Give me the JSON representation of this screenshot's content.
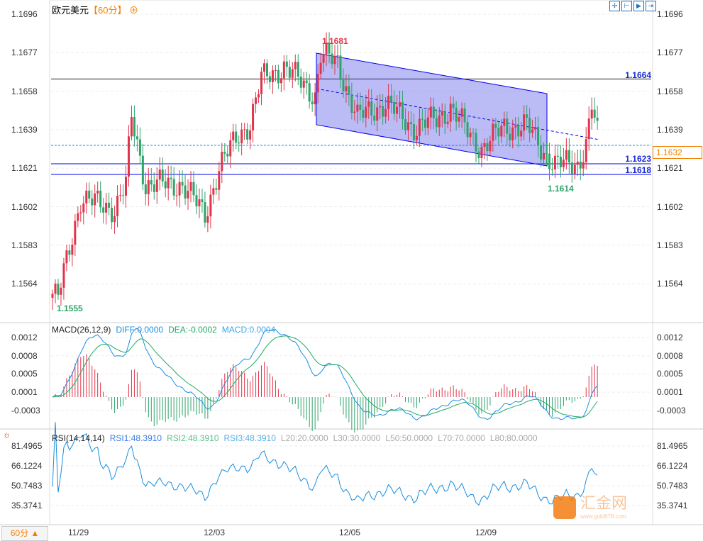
{
  "header": {
    "symbol": "欧元美元",
    "period": "【60分】",
    "toggle_icon": "circle-plus-icon"
  },
  "toolbar": [
    {
      "icon": "crosshair-icon"
    },
    {
      "icon": "zoom-range-icon"
    },
    {
      "icon": "play-icon"
    },
    {
      "icon": "jump-latest-icon"
    }
  ],
  "price_axis": [
    "1.1696",
    "1.1677",
    "1.1658",
    "1.1639",
    "1.1621",
    "1.1602",
    "1.1583",
    "1.1564"
  ],
  "current_price": "1.1632",
  "levels": {
    "resistance": "1.1664",
    "support1": "1.1623",
    "support2": "1.1618"
  },
  "annotations": {
    "high": "1.1681",
    "low_channel": "1.1614",
    "low": "1.1555"
  },
  "macd": {
    "title": "MACD(26,12,9)",
    "diff": "DIFF:0.0000",
    "dea": "DEA:-0.0002",
    "macd": "MACD:0.0004",
    "axis": [
      "0.0012",
      "0.0008",
      "0.0005",
      "0.0001",
      "-0.0003"
    ]
  },
  "rsi": {
    "title": "RSI(14,14,14)",
    "rsi1": "RSI1:48.3910",
    "rsi2": "RSI2:48.3910",
    "rsi3": "RSI3:48.3910",
    "l20": "L20:20.0000",
    "l30": "L30:30.0000",
    "l50": "L50:50.0000",
    "l70": "L70:70.0000",
    "l80": "L80:80.0000",
    "axis": [
      "81.4965",
      "66.1224",
      "50.7483",
      "35.3741"
    ]
  },
  "x_axis": [
    "11/29",
    "12/03",
    "12/05",
    "12/09"
  ],
  "period_button": "60分 ▲",
  "watermark": {
    "name": "汇金网",
    "url": "www.gold678.com"
  },
  "colors": {
    "up": "#e0344a",
    "down": "#2ea36a",
    "channel": "#0000ee",
    "diff": "#1a8ee0",
    "dea": "#22aa66"
  },
  "chart_data": {
    "type": "candlestick",
    "keypoints": [
      [
        0,
        1.1558
      ],
      [
        2,
        1.1556
      ],
      [
        10,
        1.1605
      ],
      [
        22,
        1.16
      ],
      [
        26,
        1.1612
      ],
      [
        28,
        1.1645
      ],
      [
        33,
        1.1612
      ],
      [
        46,
        1.1612
      ],
      [
        54,
        1.1597
      ],
      [
        59,
        1.162
      ],
      [
        66,
        1.1637
      ],
      [
        70,
        1.1642
      ],
      [
        74,
        1.1664
      ],
      [
        82,
        1.167
      ],
      [
        90,
        1.166
      ],
      [
        93,
        1.1656
      ],
      [
        95,
        1.1676
      ],
      [
        101,
        1.1672
      ],
      [
        104,
        1.166
      ],
      [
        108,
        1.1645
      ],
      [
        118,
        1.1652
      ],
      [
        128,
        1.164
      ],
      [
        136,
        1.1644
      ],
      [
        141,
        1.165
      ],
      [
        148,
        1.1636
      ],
      [
        152,
        1.163
      ],
      [
        160,
        1.164
      ],
      [
        168,
        1.1641
      ],
      [
        174,
        1.1628
      ],
      [
        178,
        1.1622
      ],
      [
        186,
        1.1622
      ],
      [
        189,
        1.1632
      ],
      [
        191,
        1.1651
      ],
      [
        193,
        1.1636
      ]
    ]
  }
}
